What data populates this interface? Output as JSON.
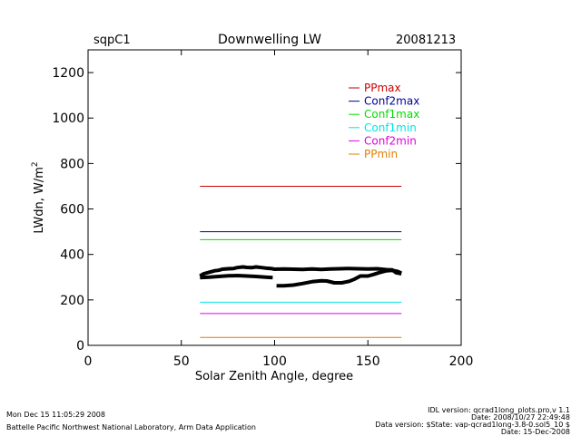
{
  "header": {
    "site": "sqpC1",
    "title": "Downwelling LW",
    "date": "20081213"
  },
  "footer": {
    "left_line1": "Mon Dec 15 11:05:29 2008",
    "left_line2": "Battelle Pacific Northwest National Laboratory, Arm Data Application",
    "right_line1": "IDL version: qcrad1long_plots.pro,v 1.1",
    "right_line2": "Date: 2008/10/27 22:49:48",
    "right_line3": "Data version: $State: vap-qcrad1long-3.8-0.sol5_10 $",
    "right_line4": "Date: 15-Dec-2008"
  },
  "chart_data": {
    "type": "line",
    "xlabel": "Solar Zenith Angle, degree",
    "ylabel_main": "LWdn, W/m",
    "ylabel_sup": "2",
    "xlim": [
      0,
      200
    ],
    "ylim": [
      0,
      1300
    ],
    "xticks": [
      0,
      50,
      100,
      150,
      200
    ],
    "yticks": [
      0,
      200,
      400,
      600,
      800,
      1000,
      1200
    ],
    "grid": false,
    "legend_position": "top-right",
    "limits": [
      {
        "name": "PPmax",
        "color": "#cc0000",
        "value": 700,
        "x": [
          60,
          168
        ]
      },
      {
        "name": "Conf2max",
        "color": "#000099",
        "value": 500,
        "x": [
          60,
          168
        ]
      },
      {
        "name": "Conf1max",
        "color": "#00dd00",
        "value": 465,
        "x": [
          60,
          168
        ]
      },
      {
        "name": "Conf1min",
        "color": "#00e5e5",
        "value": 190,
        "x": [
          60,
          168
        ]
      },
      {
        "name": "Conf2min",
        "color": "#dd00dd",
        "value": 140,
        "x": [
          60,
          168
        ]
      },
      {
        "name": "PPmin",
        "color": "#e08000",
        "value": 35,
        "x": [
          60,
          168
        ]
      }
    ],
    "measurements": [
      {
        "color": "#000000",
        "x": [
          60,
          62,
          65,
          68,
          70,
          72,
          75,
          78,
          80,
          83,
          85,
          88,
          90,
          93,
          95,
          98,
          100,
          105,
          110,
          115,
          120,
          125,
          130,
          135,
          140,
          145,
          150,
          155,
          160,
          163,
          165,
          168
        ],
        "y": [
          305,
          315,
          322,
          328,
          330,
          335,
          337,
          338,
          342,
          345,
          343,
          342,
          345,
          342,
          340,
          338,
          335,
          336,
          335,
          334,
          336,
          334,
          336,
          337,
          338,
          337,
          336,
          337,
          333,
          332,
          320,
          315
        ]
      },
      {
        "color": "#000000",
        "x": [
          60,
          65,
          70,
          75,
          80,
          85,
          90,
          95,
          99
        ],
        "y": [
          298,
          300,
          303,
          306,
          307,
          305,
          303,
          300,
          298
        ]
      },
      {
        "color": "#000000",
        "x": [
          101,
          105,
          110,
          115,
          120,
          125,
          128,
          132,
          136,
          140,
          143,
          146,
          150,
          153,
          156,
          160,
          163,
          166,
          168
        ],
        "y": [
          262,
          262,
          265,
          272,
          280,
          284,
          283,
          275,
          275,
          282,
          292,
          305,
          305,
          312,
          320,
          328,
          330,
          325,
          318
        ]
      }
    ]
  }
}
